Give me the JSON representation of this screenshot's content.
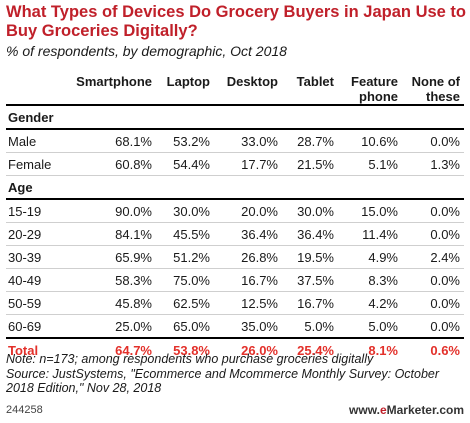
{
  "title": "What Types of Devices Do Grocery Buyers in Japan Use to Buy Groceries Digitally?",
  "subtitle": "% of respondents, by demographic, Oct 2018",
  "chart_data": {
    "type": "table",
    "columns": [
      "Smartphone",
      "Laptop",
      "Desktop",
      "Tablet",
      "Feature phone",
      "None of these"
    ],
    "sections": [
      {
        "name": "Gender",
        "rows": [
          {
            "label": "Male",
            "values": [
              "68.1%",
              "53.2%",
              "33.0%",
              "28.7%",
              "10.6%",
              "0.0%"
            ]
          },
          {
            "label": "Female",
            "values": [
              "60.8%",
              "54.4%",
              "17.7%",
              "21.5%",
              "5.1%",
              "1.3%"
            ]
          }
        ]
      },
      {
        "name": "Age",
        "rows": [
          {
            "label": "15-19",
            "values": [
              "90.0%",
              "30.0%",
              "20.0%",
              "30.0%",
              "15.0%",
              "0.0%"
            ]
          },
          {
            "label": "20-29",
            "values": [
              "84.1%",
              "45.5%",
              "36.4%",
              "36.4%",
              "11.4%",
              "0.0%"
            ]
          },
          {
            "label": "30-39",
            "values": [
              "65.9%",
              "51.2%",
              "26.8%",
              "19.5%",
              "4.9%",
              "2.4%"
            ]
          },
          {
            "label": "40-49",
            "values": [
              "58.3%",
              "75.0%",
              "16.7%",
              "37.5%",
              "8.3%",
              "0.0%"
            ]
          },
          {
            "label": "50-59",
            "values": [
              "45.8%",
              "62.5%",
              "12.5%",
              "16.7%",
              "4.2%",
              "0.0%"
            ]
          },
          {
            "label": "60-69",
            "values": [
              "25.0%",
              "65.0%",
              "35.0%",
              "5.0%",
              "5.0%",
              "0.0%"
            ]
          }
        ]
      }
    ],
    "total": {
      "label": "Total",
      "values": [
        "64.7%",
        "53.8%",
        "26.0%",
        "25.4%",
        "8.1%",
        "0.6%"
      ]
    }
  },
  "note": "Note: n=173; among respondents who purchase groceries digitally",
  "source": "Source: JustSystems, \"Ecommerce and Mcommerce Monthly Survey: October 2018 Edition,\" Nov 28, 2018",
  "footer": {
    "code": "244258",
    "brand_prefix": "www.",
    "brand_e": "e",
    "brand_rest": "Marketer.com"
  },
  "colors": {
    "title": "#c0202a",
    "total": "#e3302a"
  }
}
